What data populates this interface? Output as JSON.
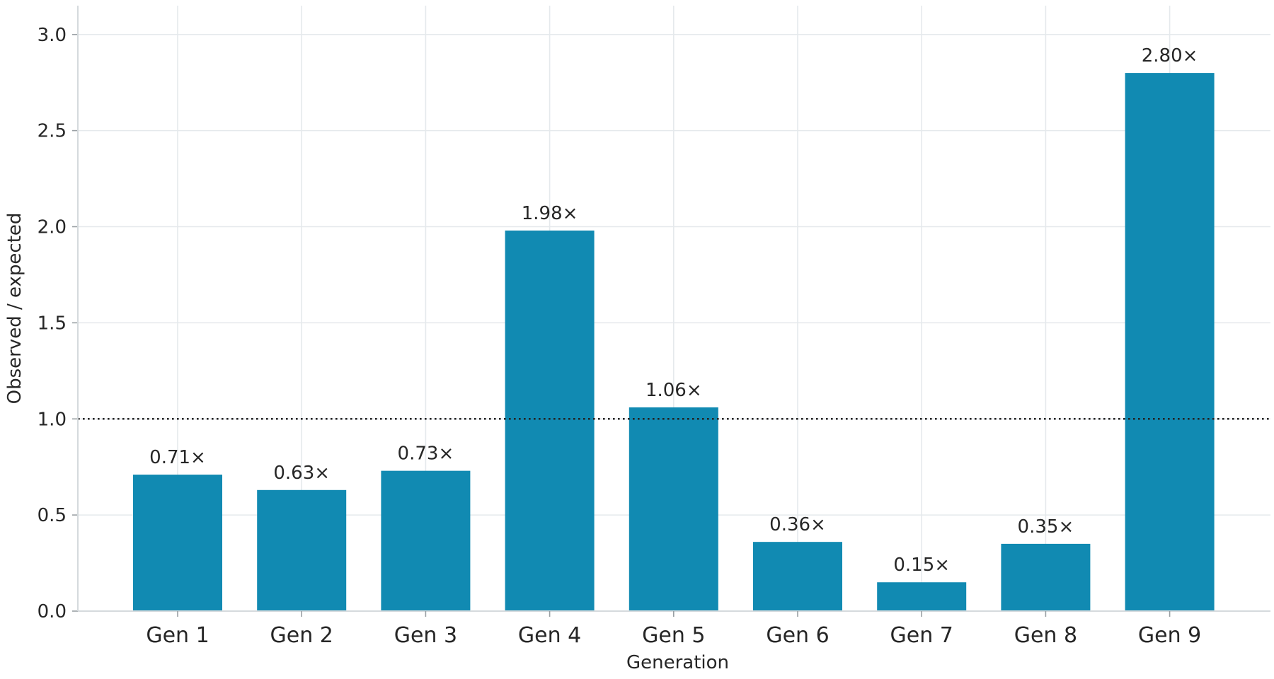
{
  "chart_data": {
    "type": "bar",
    "title": "",
    "xlabel": "Generation",
    "ylabel": "Observed / expected",
    "categories": [
      "Gen 1",
      "Gen 2",
      "Gen 3",
      "Gen 4",
      "Gen 5",
      "Gen 6",
      "Gen 7",
      "Gen 8",
      "Gen 9"
    ],
    "values": [
      0.71,
      0.63,
      0.73,
      1.98,
      1.06,
      0.36,
      0.15,
      0.35,
      2.8
    ],
    "value_labels": [
      "0.71×",
      "0.63×",
      "0.73×",
      "1.98×",
      "1.06×",
      "0.36×",
      "0.15×",
      "0.35×",
      "2.80×"
    ],
    "ylim": [
      0,
      3.15
    ],
    "yticks": [
      0.0,
      0.5,
      1.0,
      1.5,
      2.0,
      2.5,
      3.0
    ],
    "ytick_labels": [
      "0.0",
      "0.5",
      "1.0",
      "1.5",
      "2.0",
      "2.5",
      "3.0"
    ],
    "reference_line": {
      "value": 1.0,
      "style": "dotted"
    },
    "grid": true,
    "legend": "none",
    "colors": {
      "bar": "#118ab2",
      "grid": "#e5e9ec",
      "reference": "#222222",
      "text": "#262626"
    }
  }
}
